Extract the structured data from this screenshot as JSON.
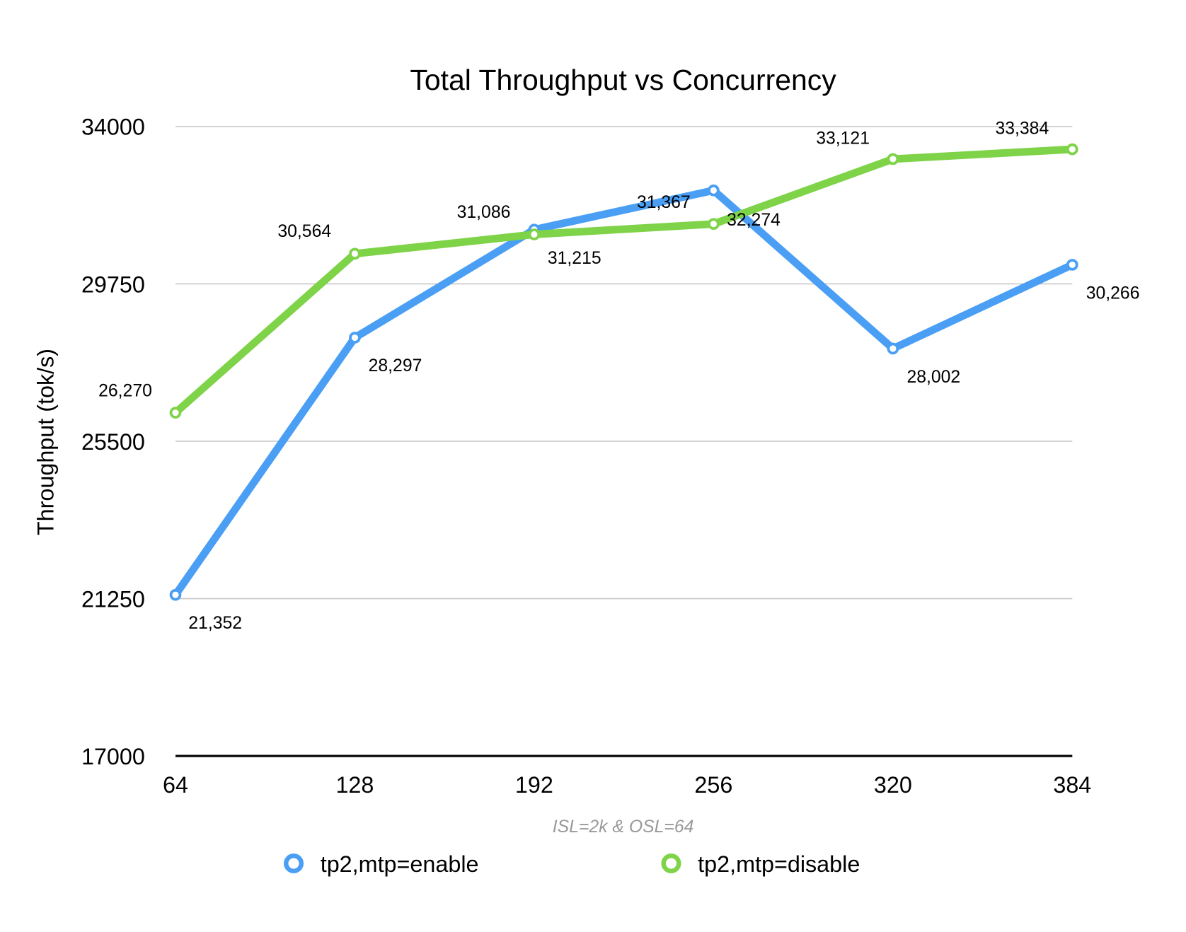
{
  "chart_data": {
    "type": "line",
    "title": "Total Throughput vs Concurrency",
    "xlabel": "ISL=2k & OSL=64",
    "ylabel": "Throughput (tok/s)",
    "categories": [
      "64",
      "128",
      "192",
      "256",
      "320",
      "384"
    ],
    "ylim": [
      17000,
      34000
    ],
    "yticks": [
      "17000",
      "21250",
      "25500",
      "29750",
      "34000"
    ],
    "grid": true,
    "legend_position": "bottom",
    "series": [
      {
        "name": "tp2,mtp=enable",
        "color": "#4a9ff5",
        "values": [
          21352,
          28297,
          31215,
          32274,
          28002,
          30266
        ],
        "labels": [
          "21,352",
          "28,297",
          "31,215",
          "32,274",
          "28,002",
          "30,266"
        ]
      },
      {
        "name": "tp2,mtp=disable",
        "color": "#7ed348",
        "values": [
          26270,
          30564,
          31086,
          31367,
          33121,
          33384
        ],
        "labels": [
          "26,270",
          "30,564",
          "31,086",
          "31,367",
          "33,121",
          "33,384"
        ]
      }
    ]
  }
}
